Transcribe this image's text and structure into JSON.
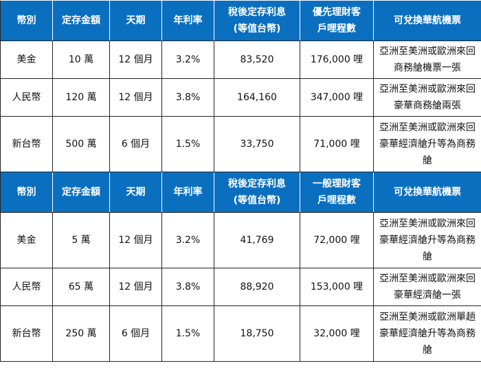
{
  "premium": {
    "headers": [
      "幣別",
      "定存金額",
      "天期",
      "年利率",
      "稅後定存利息\n(等值台幣)",
      "優先理財客\n戶哩程數",
      "可兌換華航機票"
    ],
    "rows": [
      {
        "currency": "美金",
        "amount": "10 萬",
        "term": "12 個月",
        "rate": "3.2%",
        "interest": "83,520",
        "miles": "176,000 哩",
        "ticket": "亞洲至美洲或歐洲來回商務艙機票一張"
      },
      {
        "currency": "人民幣",
        "amount": "120 萬",
        "term": "12 個月",
        "rate": "3.8%",
        "interest": "164,160",
        "miles": "347,000 哩",
        "ticket": "亞洲至美洲或歐洲來回豪華商務艙兩張"
      },
      {
        "currency": "新台幣",
        "amount": "500 萬",
        "term": "6 個月",
        "rate": "1.5%",
        "interest": "33,750",
        "miles": "71,000 哩",
        "ticket": "亞洲至美洲或歐洲來回豪華經濟艙升等為商務艙"
      }
    ]
  },
  "general": {
    "headers": [
      "幣別",
      "定存金額",
      "天期",
      "年利率",
      "稅後定存利息\n(等值台幣)",
      "一般理財客\n戶哩程數",
      "可兌換華航機票"
    ],
    "rows": [
      {
        "currency": "美金",
        "amount": "5 萬",
        "term": "12 個月",
        "rate": "3.2%",
        "interest": "41,769",
        "miles": "72,000 哩",
        "ticket": "亞洲至美洲或歐洲來回豪華經濟艙升等為商務艙"
      },
      {
        "currency": "人民幣",
        "amount": "65 萬",
        "term": "12 個月",
        "rate": "3.8%",
        "interest": "88,920",
        "miles": "153,000 哩",
        "ticket": "亞洲至美洲或歐洲來回豪華經濟艙一張"
      },
      {
        "currency": "新台幣",
        "amount": "250 萬",
        "term": "6 個月",
        "rate": "1.5%",
        "interest": "18,750",
        "miles": "32,000 哩",
        "ticket": "亞洲至美洲或歐洲單趟豪華經濟艙升等為商務艙"
      }
    ]
  }
}
